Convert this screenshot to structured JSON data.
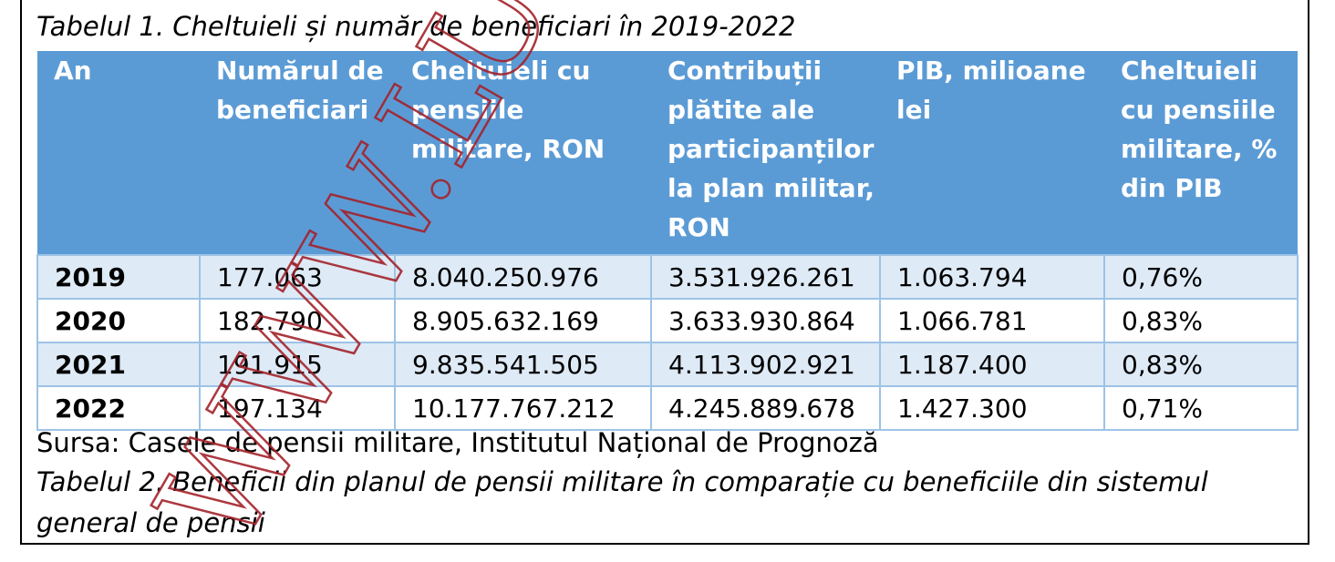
{
  "caption_table1": "Tabelul 1. Cheltuieli și număr de beneficiari în 2019-2022",
  "table": {
    "headers": [
      "An",
      "Numărul de beneficiari",
      "Cheltuieli cu pensiile militare, RON",
      "Contribuții plătite ale participanților la plan militar, RON",
      "PIB, milioane lei",
      "Cheltuieli cu pensiile militare, % din PIB"
    ],
    "rows": [
      [
        "2019",
        "177.063",
        "8.040.250.976",
        "3.531.926.261",
        "1.063.794",
        "0,76%"
      ],
      [
        "2020",
        "182.790",
        "8.905.632.169",
        "3.633.930.864",
        "1.066.781",
        "0,83%"
      ],
      [
        "2021",
        "191.915",
        "9.835.541.505",
        "4.113.902.921",
        "1.187.400",
        "0,83%"
      ],
      [
        "2022",
        "197.134",
        "10.177.767.212",
        "4.245.889.678",
        "1.427.300",
        "0,71%"
      ]
    ]
  },
  "source_note": "Sursa: Casele de pensii militare, Institutul Național de Prognoză",
  "caption_table2_line1": "Tabelul 2. Beneficii din planul de pensii militare în comparație cu beneficiile din sistemul",
  "caption_table2_line2": "general de pensii",
  "watermark_text": "WWW.LUM",
  "colors": {
    "header_bg": "#5b9bd5",
    "band_bg": "#deeaf6",
    "grid": "#9dc3e6",
    "watermark": "#a3222a"
  }
}
